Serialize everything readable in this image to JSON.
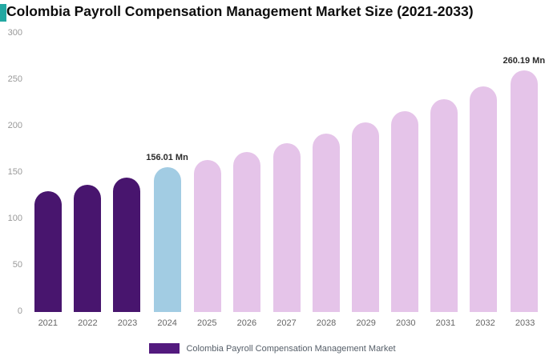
{
  "title": "Colombia Payroll Compensation Management Market Size (2021-2033)",
  "brand_mark_color": "#23a8a2",
  "legend": {
    "label": "Colombia Payroll Compensation Management Market",
    "swatch_color": "#531a7e"
  },
  "chart_data": {
    "type": "bar",
    "title": "Colombia Payroll Compensation Management Market Size (2021-2033)",
    "unit": "Mn",
    "categories": [
      "2021",
      "2022",
      "2023",
      "2024",
      "2025",
      "2026",
      "2027",
      "2028",
      "2029",
      "2030",
      "2031",
      "2032",
      "2033"
    ],
    "values": [
      130,
      137,
      145,
      156.01,
      164,
      172.5,
      182,
      192.5,
      204,
      216.5,
      229.5,
      243.5,
      260.19
    ],
    "ylim": [
      0,
      300
    ],
    "yticks": [
      0,
      50,
      100,
      150,
      200,
      250,
      300
    ],
    "grid": "off",
    "legend_position": "bottom",
    "bar_colors": [
      "#48156e",
      "#48156e",
      "#48156e",
      "#a2cce3",
      "#e5c4e9",
      "#e5c4e9",
      "#e5c4e9",
      "#e5c4e9",
      "#e5c4e9",
      "#e5c4e9",
      "#e5c4e9",
      "#e5c4e9",
      "#e5c4e9"
    ],
    "annotations": [
      {
        "index": 3,
        "text": "156.01 Mn"
      },
      {
        "index": 12,
        "text": "260.19 Mn"
      }
    ]
  }
}
